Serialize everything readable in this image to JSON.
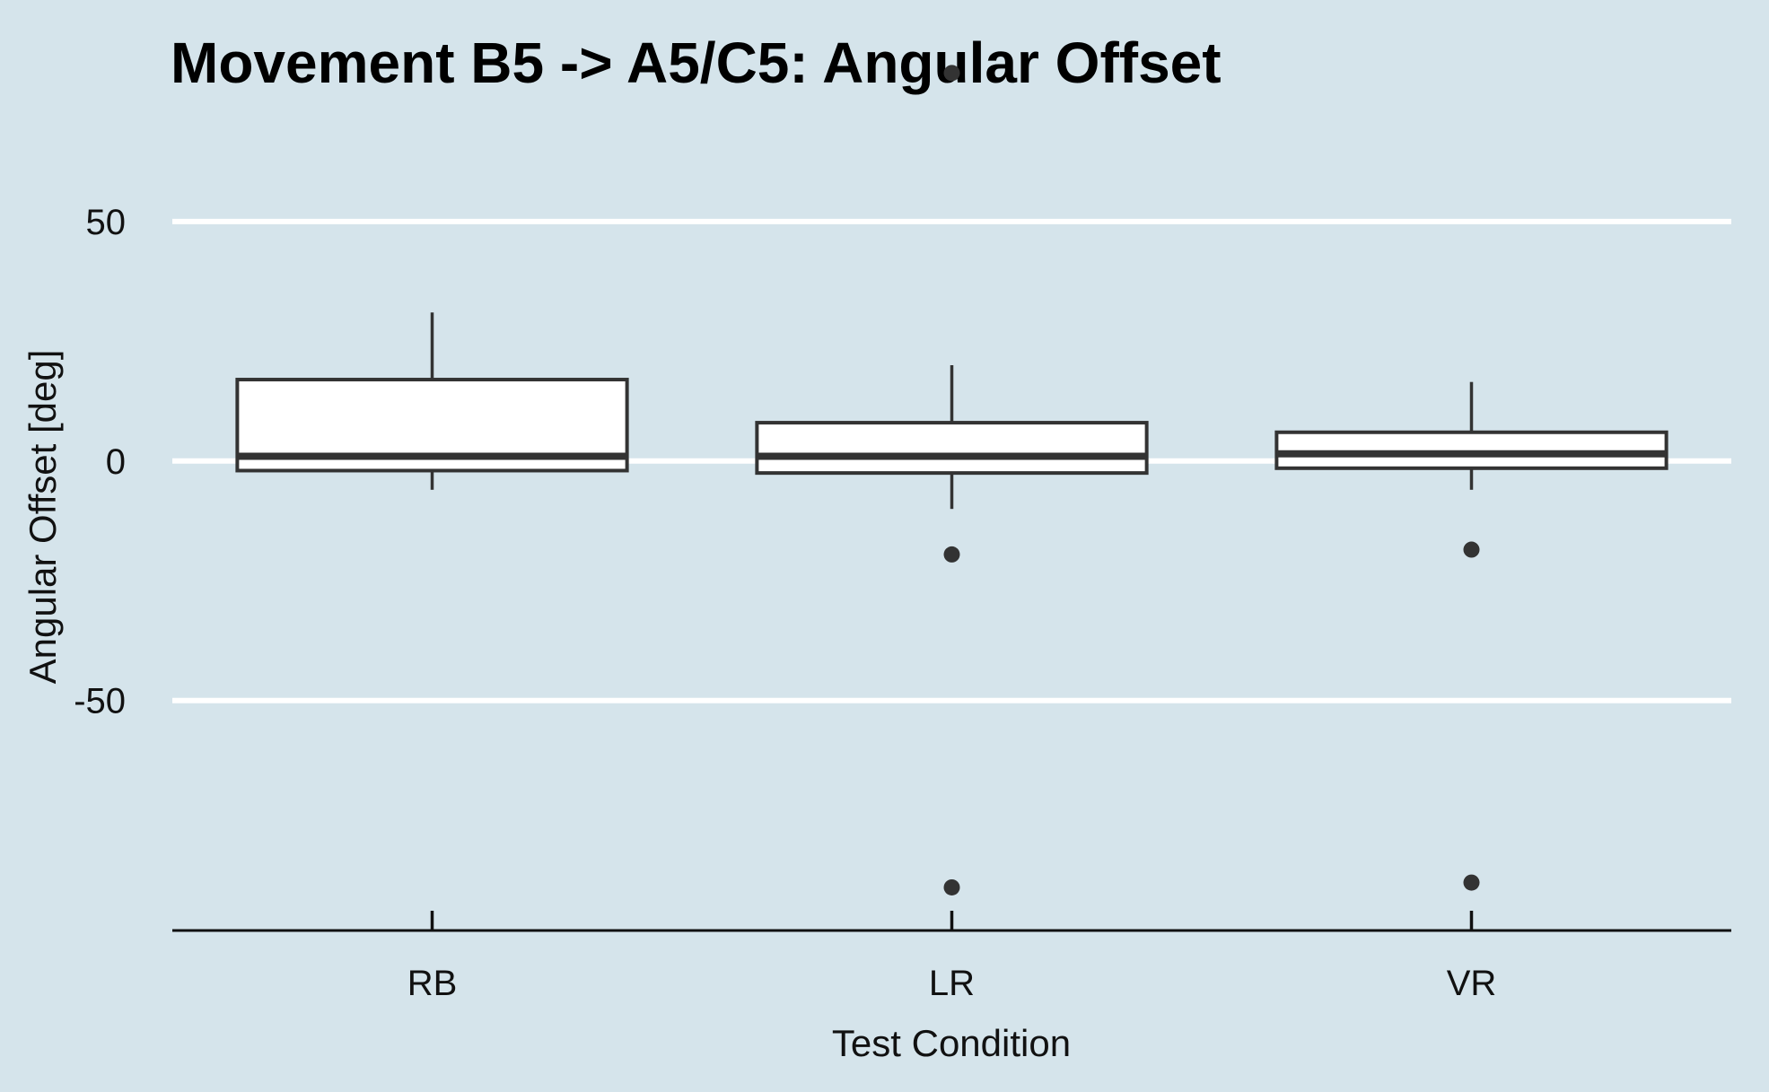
{
  "chart_data": {
    "type": "boxplot",
    "title": "Movement B5 -> A5/C5: Angular Offset",
    "xlabel": "Test Condition",
    "ylabel": "Angular Offset [deg]",
    "ylim": [
      -98,
      82
    ],
    "yticks": [
      50,
      0,
      -50
    ],
    "ytick_labels": [
      "50",
      "0",
      "-50"
    ],
    "grid": true,
    "background": "#d5e4eb",
    "categories": [
      "RB",
      "LR",
      "VR"
    ],
    "boxes": [
      {
        "name": "RB",
        "q1": -2,
        "median": 1,
        "q3": 17,
        "whisker_low": -6,
        "whisker_high": 31,
        "outliers": []
      },
      {
        "name": "LR",
        "q1": -2.5,
        "median": 1,
        "q3": 8,
        "whisker_low": -10,
        "whisker_high": 20,
        "outliers": [
          81,
          -19.5,
          -89
        ]
      },
      {
        "name": "VR",
        "q1": -1.5,
        "median": 1.5,
        "q3": 6,
        "whisker_low": -6,
        "whisker_high": 16.5,
        "outliers": [
          -18.5,
          -88
        ]
      }
    ]
  }
}
